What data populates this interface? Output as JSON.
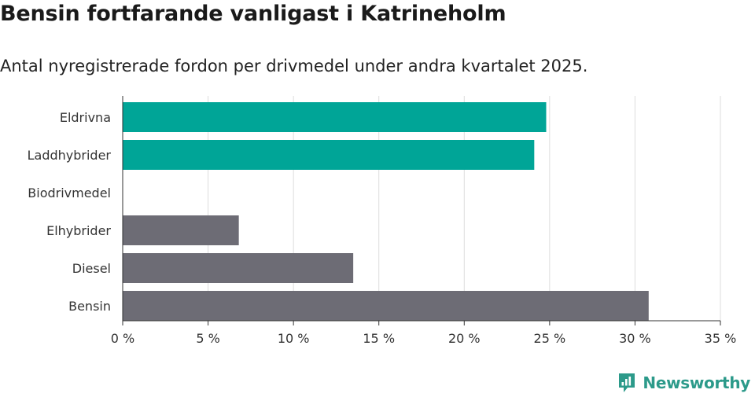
{
  "header": {
    "title": "Bensin fortfarande vanligast i Katrineholm",
    "subtitle": "Antal nyregistrerade fordon per drivmedel under andra kvartalet 2025."
  },
  "brand": {
    "name": "Newsworthy",
    "icon": "newsworthy-logo-icon",
    "color": "#2c9a8a"
  },
  "colors": {
    "highlight": "#00a597",
    "default": "#6d6c75",
    "grid": "#dddddd",
    "axis": "#333333"
  },
  "chart_data": {
    "type": "bar",
    "orientation": "horizontal",
    "title": "Bensin fortfarande vanligast i Katrineholm",
    "subtitle": "Antal nyregistrerade fordon per drivmedel under andra kvartalet 2025.",
    "categories": [
      "Eldrivna",
      "Laddhybrider",
      "Biodrivmedel",
      "Elhybrider",
      "Diesel",
      "Bensin"
    ],
    "values": [
      24.8,
      24.1,
      0,
      6.8,
      13.5,
      30.8
    ],
    "highlighted": [
      true,
      true,
      false,
      false,
      false,
      false
    ],
    "unit": "%",
    "xlim": [
      0,
      35
    ],
    "xticks": [
      0,
      5,
      10,
      15,
      20,
      25,
      30,
      35
    ],
    "xtick_labels": [
      "0 %",
      "5 %",
      "10 %",
      "15 %",
      "20 %",
      "25 %",
      "30 %",
      "35 %"
    ],
    "xlabel": "",
    "ylabel": "",
    "grid": "vertical"
  }
}
